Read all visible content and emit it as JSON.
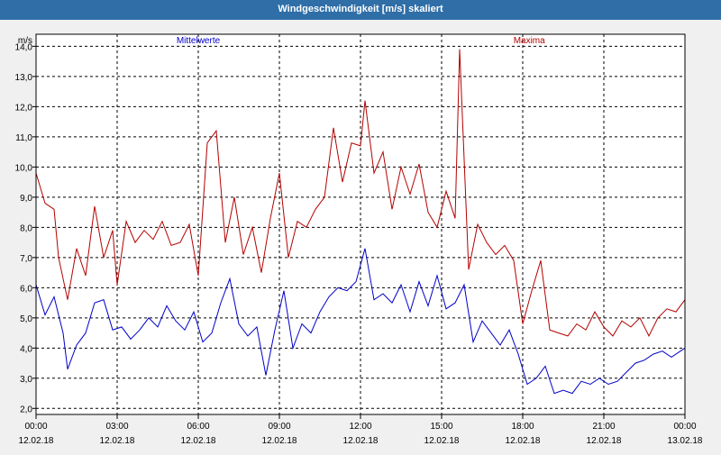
{
  "window": {
    "title": "Windgeschwindigkeit [m/s] skaliert"
  },
  "chart_data": {
    "type": "line",
    "title": "Windgeschwindigkeit [m/s] skaliert",
    "ylabel": "m/s",
    "ylim": [
      1.8,
      14.4
    ],
    "yticks": [
      {
        "value": 2,
        "label": "2,0"
      },
      {
        "value": 3,
        "label": "3,0"
      },
      {
        "value": 4,
        "label": "4,0"
      },
      {
        "value": 5,
        "label": "5,0"
      },
      {
        "value": 6,
        "label": "6,0"
      },
      {
        "value": 7,
        "label": "7,0"
      },
      {
        "value": 8,
        "label": "8,0"
      },
      {
        "value": 9,
        "label": "9,0"
      },
      {
        "value": 10,
        "label": "10,0"
      },
      {
        "value": 11,
        "label": "11,0"
      },
      {
        "value": 12,
        "label": "12,0"
      },
      {
        "value": 13,
        "label": "13,0"
      },
      {
        "value": 14,
        "label": "14,0"
      }
    ],
    "xlim": [
      "12.02.18 00:00",
      "13.02.18 00:00"
    ],
    "xticks": [
      {
        "value": "12.02.18 00:00",
        "time": "00:00",
        "date": "12.02.18"
      },
      {
        "value": "12.02.18 03:00",
        "time": "03:00",
        "date": "12.02.18"
      },
      {
        "value": "12.02.18 06:00",
        "time": "06:00",
        "date": "12.02.18"
      },
      {
        "value": "12.02.18 09:00",
        "time": "09:00",
        "date": "12.02.18"
      },
      {
        "value": "12.02.18 12:00",
        "time": "12:00",
        "date": "12.02.18"
      },
      {
        "value": "12.02.18 15:00",
        "time": "15:00",
        "date": "12.02.18"
      },
      {
        "value": "12.02.18 18:00",
        "time": "18:00",
        "date": "12.02.18"
      },
      {
        "value": "12.02.18 21:00",
        "time": "21:00",
        "date": "12.02.18"
      },
      {
        "value": "13.02.18 00:00",
        "time": "00:00",
        "date": "13.02.18"
      }
    ],
    "grid": true,
    "legend": "top",
    "series": [
      {
        "name": "Mittelwerte",
        "color": "#0000c8",
        "points": [
          [
            "12.02.18 00:00",
            6.1
          ],
          [
            "12.02.18 00:20",
            5.1
          ],
          [
            "12.02.18 00:40",
            5.7
          ],
          [
            "12.02.18 01:00",
            4.5
          ],
          [
            "12.02.18 01:10",
            3.3
          ],
          [
            "12.02.18 01:30",
            4.1
          ],
          [
            "12.02.18 01:50",
            4.5
          ],
          [
            "12.02.18 02:10",
            5.5
          ],
          [
            "12.02.18 02:30",
            5.6
          ],
          [
            "12.02.18 02:50",
            4.6
          ],
          [
            "12.02.18 03:10",
            4.7
          ],
          [
            "12.02.18 03:30",
            4.3
          ],
          [
            "12.02.18 03:50",
            4.6
          ],
          [
            "12.02.18 04:10",
            5.0
          ],
          [
            "12.02.18 04:30",
            4.7
          ],
          [
            "12.02.18 04:50",
            5.4
          ],
          [
            "12.02.18 05:10",
            4.9
          ],
          [
            "12.02.18 05:30",
            4.6
          ],
          [
            "12.02.18 05:50",
            5.2
          ],
          [
            "12.02.18 06:10",
            4.2
          ],
          [
            "12.02.18 06:30",
            4.5
          ],
          [
            "12.02.18 06:50",
            5.5
          ],
          [
            "12.02.18 07:10",
            6.3
          ],
          [
            "12.02.18 07:30",
            4.8
          ],
          [
            "12.02.18 07:50",
            4.4
          ],
          [
            "12.02.18 08:10",
            4.7
          ],
          [
            "12.02.18 08:30",
            3.1
          ],
          [
            "12.02.18 08:50",
            4.6
          ],
          [
            "12.02.18 09:10",
            5.9
          ],
          [
            "12.02.18 09:30",
            4.0
          ],
          [
            "12.02.18 09:50",
            4.8
          ],
          [
            "12.02.18 10:10",
            4.5
          ],
          [
            "12.02.18 10:30",
            5.2
          ],
          [
            "12.02.18 10:50",
            5.7
          ],
          [
            "12.02.18 11:10",
            6.0
          ],
          [
            "12.02.18 11:30",
            5.9
          ],
          [
            "12.02.18 11:50",
            6.2
          ],
          [
            "12.02.18 12:10",
            7.3
          ],
          [
            "12.02.18 12:30",
            5.6
          ],
          [
            "12.02.18 12:50",
            5.8
          ],
          [
            "12.02.18 13:10",
            5.5
          ],
          [
            "12.02.18 13:30",
            6.1
          ],
          [
            "12.02.18 13:50",
            5.2
          ],
          [
            "12.02.18 14:10",
            6.2
          ],
          [
            "12.02.18 14:30",
            5.4
          ],
          [
            "12.02.18 14:50",
            6.4
          ],
          [
            "12.02.18 15:10",
            5.3
          ],
          [
            "12.02.18 15:30",
            5.5
          ],
          [
            "12.02.18 15:50",
            6.1
          ],
          [
            "12.02.18 16:10",
            4.2
          ],
          [
            "12.02.18 16:30",
            4.9
          ],
          [
            "12.02.18 16:50",
            4.5
          ],
          [
            "12.02.18 17:10",
            4.1
          ],
          [
            "12.02.18 17:30",
            4.6
          ],
          [
            "12.02.18 17:50",
            3.8
          ],
          [
            "12.02.18 18:10",
            2.8
          ],
          [
            "12.02.18 18:30",
            3.0
          ],
          [
            "12.02.18 18:50",
            3.4
          ],
          [
            "12.02.18 19:10",
            2.5
          ],
          [
            "12.02.18 19:30",
            2.6
          ],
          [
            "12.02.18 19:50",
            2.5
          ],
          [
            "12.02.18 20:10",
            2.9
          ],
          [
            "12.02.18 20:30",
            2.8
          ],
          [
            "12.02.18 20:50",
            3.0
          ],
          [
            "12.02.18 21:10",
            2.8
          ],
          [
            "12.02.18 21:30",
            2.9
          ],
          [
            "12.02.18 21:50",
            3.2
          ],
          [
            "12.02.18 22:10",
            3.5
          ],
          [
            "12.02.18 22:30",
            3.6
          ],
          [
            "12.02.18 22:50",
            3.8
          ],
          [
            "12.02.18 23:10",
            3.9
          ],
          [
            "12.02.18 23:30",
            3.7
          ],
          [
            "12.02.18 23:50",
            3.9
          ],
          [
            "13.02.18 00:00",
            4.0
          ]
        ]
      },
      {
        "name": "Maxima",
        "color": "#b40000",
        "points": [
          [
            "12.02.18 00:00",
            9.8
          ],
          [
            "12.02.18 00:20",
            8.8
          ],
          [
            "12.02.18 00:40",
            8.6
          ],
          [
            "12.02.18 00:50",
            7.0
          ],
          [
            "12.02.18 01:10",
            5.6
          ],
          [
            "12.02.18 01:30",
            7.3
          ],
          [
            "12.02.18 01:50",
            6.4
          ],
          [
            "12.02.18 02:10",
            8.7
          ],
          [
            "12.02.18 02:30",
            7.0
          ],
          [
            "12.02.18 02:50",
            7.9
          ],
          [
            "12.02.18 03:00",
            6.1
          ],
          [
            "12.02.18 03:20",
            8.2
          ],
          [
            "12.02.18 03:40",
            7.5
          ],
          [
            "12.02.18 04:00",
            7.9
          ],
          [
            "12.02.18 04:20",
            7.6
          ],
          [
            "12.02.18 04:40",
            8.2
          ],
          [
            "12.02.18 05:00",
            7.4
          ],
          [
            "12.02.18 05:20",
            7.5
          ],
          [
            "12.02.18 05:40",
            8.1
          ],
          [
            "12.02.18 06:00",
            6.4
          ],
          [
            "12.02.18 06:20",
            10.8
          ],
          [
            "12.02.18 06:40",
            11.2
          ],
          [
            "12.02.18 07:00",
            7.5
          ],
          [
            "12.02.18 07:20",
            9.0
          ],
          [
            "12.02.18 07:40",
            7.1
          ],
          [
            "12.02.18 08:00",
            8.0
          ],
          [
            "12.02.18 08:20",
            6.5
          ],
          [
            "12.02.18 08:40",
            8.3
          ],
          [
            "12.02.18 09:00",
            9.8
          ],
          [
            "12.02.18 09:20",
            7.0
          ],
          [
            "12.02.18 09:40",
            8.2
          ],
          [
            "12.02.18 10:00",
            8.0
          ],
          [
            "12.02.18 10:20",
            8.6
          ],
          [
            "12.02.18 10:40",
            9.0
          ],
          [
            "12.02.18 11:00",
            11.3
          ],
          [
            "12.02.18 11:20",
            9.5
          ],
          [
            "12.02.18 11:40",
            10.8
          ],
          [
            "12.02.18 12:00",
            10.7
          ],
          [
            "12.02.18 12:10",
            12.2
          ],
          [
            "12.02.18 12:30",
            9.8
          ],
          [
            "12.02.18 12:50",
            10.5
          ],
          [
            "12.02.18 13:10",
            8.6
          ],
          [
            "12.02.18 13:30",
            10.0
          ],
          [
            "12.02.18 13:50",
            9.1
          ],
          [
            "12.02.18 14:10",
            10.1
          ],
          [
            "12.02.18 14:30",
            8.5
          ],
          [
            "12.02.18 14:50",
            8.0
          ],
          [
            "12.02.18 15:10",
            9.2
          ],
          [
            "12.02.18 15:30",
            8.3
          ],
          [
            "12.02.18 15:40",
            13.9
          ],
          [
            "12.02.18 16:00",
            6.6
          ],
          [
            "12.02.18 16:20",
            8.1
          ],
          [
            "12.02.18 16:40",
            7.5
          ],
          [
            "12.02.18 17:00",
            7.1
          ],
          [
            "12.02.18 17:20",
            7.4
          ],
          [
            "12.02.18 17:40",
            6.9
          ],
          [
            "12.02.18 18:00",
            4.8
          ],
          [
            "12.02.18 18:20",
            5.9
          ],
          [
            "12.02.18 18:40",
            6.9
          ],
          [
            "12.02.18 19:00",
            4.6
          ],
          [
            "12.02.18 19:20",
            4.5
          ],
          [
            "12.02.18 19:40",
            4.4
          ],
          [
            "12.02.18 20:00",
            4.8
          ],
          [
            "12.02.18 20:20",
            4.6
          ],
          [
            "12.02.18 20:40",
            5.2
          ],
          [
            "12.02.18 21:00",
            4.7
          ],
          [
            "12.02.18 21:20",
            4.4
          ],
          [
            "12.02.18 21:40",
            4.9
          ],
          [
            "12.02.18 22:00",
            4.7
          ],
          [
            "12.02.18 22:20",
            5.0
          ],
          [
            "12.02.18 22:40",
            4.4
          ],
          [
            "12.02.18 23:00",
            5.0
          ],
          [
            "12.02.18 23:20",
            5.3
          ],
          [
            "12.02.18 23:40",
            5.2
          ],
          [
            "13.02.18 00:00",
            5.6
          ]
        ]
      }
    ]
  }
}
